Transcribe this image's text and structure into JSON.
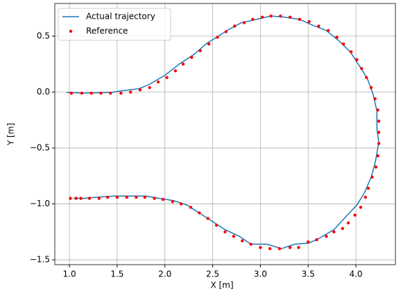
{
  "chart_data": {
    "type": "line",
    "xlabel": "X [m]",
    "ylabel": "Y [m]",
    "xlim": [
      0.847,
      4.414
    ],
    "ylim": [
      -1.543,
      0.792
    ],
    "xticks": [
      {
        "value": 1.0,
        "label": "1.0"
      },
      1.5,
      {
        "value": 2.0,
        "label": "2.0"
      },
      2.5,
      {
        "value": 3.0,
        "label": "3.0"
      },
      3.5,
      {
        "value": 4.0,
        "label": "4.0"
      }
    ],
    "yticks": [
      {
        "value": -1.5,
        "label": "−1.5"
      },
      {
        "value": -1.0,
        "label": "−1.0"
      },
      {
        "value": -0.5,
        "label": "−0.5"
      },
      {
        "value": 0.0,
        "label": "0.0"
      },
      {
        "value": 0.5,
        "label": "0.5"
      }
    ],
    "grid": true,
    "legend": "upper left",
    "series": [
      {
        "name": "Actual trajectory",
        "color": "#1f77b4",
        "style": "line",
        "x": [
          0.97,
          1.15,
          1.44,
          1.54,
          1.73,
          1.84,
          2.0,
          2.15,
          2.31,
          2.43,
          2.54,
          2.67,
          2.8,
          2.96,
          3.11,
          3.25,
          3.41,
          3.54,
          3.69,
          3.82,
          3.94,
          4.04,
          4.12,
          4.18,
          4.22,
          4.22,
          4.24,
          4.2,
          4.16,
          4.09,
          4.01,
          3.91,
          3.77,
          3.61,
          3.51,
          3.36,
          3.22,
          3.07,
          2.9,
          2.78,
          2.63,
          2.45,
          2.34,
          2.23,
          2.09,
          1.94,
          1.8,
          1.62,
          1.47,
          1.29,
          1.15,
          1.04
        ],
        "values": [
          -0.003,
          -0.01,
          -0.003,
          0.01,
          0.03,
          0.07,
          0.15,
          0.25,
          0.34,
          0.43,
          0.49,
          0.56,
          0.62,
          0.65,
          0.68,
          0.67,
          0.65,
          0.6,
          0.55,
          0.46,
          0.36,
          0.23,
          0.12,
          -0.02,
          -0.17,
          -0.33,
          -0.45,
          -0.64,
          -0.76,
          -0.9,
          -1.01,
          -1.1,
          -1.23,
          -1.31,
          -1.35,
          -1.36,
          -1.4,
          -1.36,
          -1.36,
          -1.29,
          -1.23,
          -1.13,
          -1.07,
          -1.01,
          -0.97,
          -0.95,
          -0.93,
          -0.93,
          -0.93,
          -0.94,
          -0.95,
          -0.95
        ]
      },
      {
        "name": "Reference",
        "color": "#ff0000",
        "style": "markers",
        "x": [
          1.02,
          1.13,
          1.23,
          1.33,
          1.43,
          1.54,
          1.64,
          1.74,
          1.84,
          1.93,
          2.02,
          2.11,
          2.19,
          2.28,
          2.37,
          2.46,
          2.55,
          2.64,
          2.73,
          2.83,
          2.92,
          3.02,
          3.11,
          3.21,
          3.31,
          3.41,
          3.51,
          3.61,
          3.71,
          3.8,
          3.87,
          3.95,
          4.01,
          4.06,
          4.11,
          4.16,
          4.2,
          4.23,
          4.24,
          4.24,
          4.24,
          4.23,
          4.21,
          4.17,
          4.13,
          4.1,
          4.05,
          3.99,
          3.92,
          3.86,
          3.77,
          3.69,
          3.59,
          3.5,
          3.4,
          3.31,
          3.2,
          3.1,
          3.0,
          2.9,
          2.81,
          2.72,
          2.63,
          2.54,
          2.45,
          2.36,
          2.27,
          2.17,
          2.08,
          1.98,
          1.89,
          1.79,
          1.7,
          1.6,
          1.5,
          1.4,
          1.31,
          1.21,
          1.12,
          1.07,
          1.01
        ],
        "values": [
          -0.01,
          -0.01,
          -0.01,
          -0.01,
          -0.01,
          -0.01,
          0.0,
          0.02,
          0.04,
          0.09,
          0.13,
          0.19,
          0.25,
          0.31,
          0.37,
          0.43,
          0.49,
          0.54,
          0.59,
          0.62,
          0.65,
          0.67,
          0.68,
          0.68,
          0.67,
          0.65,
          0.63,
          0.59,
          0.55,
          0.49,
          0.43,
          0.36,
          0.29,
          0.21,
          0.13,
          0.04,
          -0.06,
          -0.16,
          -0.26,
          -0.36,
          -0.46,
          -0.57,
          -0.67,
          -0.76,
          -0.86,
          -0.94,
          -1.03,
          -1.1,
          -1.17,
          -1.22,
          -1.25,
          -1.29,
          -1.32,
          -1.34,
          -1.39,
          -1.39,
          -1.4,
          -1.4,
          -1.39,
          -1.36,
          -1.33,
          -1.29,
          -1.25,
          -1.19,
          -1.13,
          -1.08,
          -1.03,
          -1.0,
          -0.98,
          -0.96,
          -0.95,
          -0.94,
          -0.94,
          -0.94,
          -0.94,
          -0.94,
          -0.95,
          -0.95,
          -0.95,
          -0.95,
          -0.95
        ]
      }
    ]
  }
}
